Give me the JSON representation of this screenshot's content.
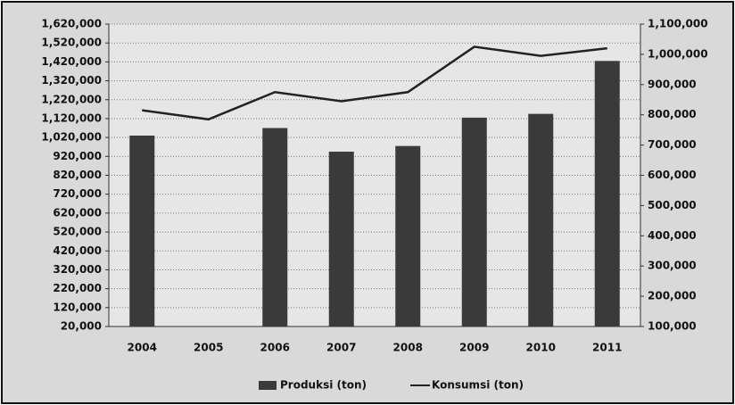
{
  "chart_data": {
    "type": "bar-line",
    "categories": [
      "2004",
      "2005",
      "2006",
      "2007",
      "2008",
      "2009",
      "2010",
      "2011"
    ],
    "series": [
      {
        "name": "Produksi (ton)",
        "type": "bar",
        "color": "#3a3a3a",
        "axis": "y",
        "values": [
          1030000,
          null,
          1070000,
          945000,
          975000,
          1125000,
          1145000,
          1425000
        ]
      },
      {
        "name": "Konsumsi (ton)",
        "type": "line",
        "color": "#222222",
        "axis": "y2",
        "values": [
          815000,
          785000,
          875000,
          845000,
          875000,
          1025000,
          995000,
          1020000
        ]
      }
    ],
    "ylim": [
      20000,
      1620000
    ],
    "yticks": [
      {
        "value": 20000,
        "label": "20,000"
      },
      {
        "value": 120000,
        "label": "120,000"
      },
      {
        "value": 220000,
        "label": "220,000"
      },
      {
        "value": 320000,
        "label": "320,000"
      },
      {
        "value": 420000,
        "label": "420,000"
      },
      {
        "value": 520000,
        "label": "520,000"
      },
      {
        "value": 620000,
        "label": "620,000"
      },
      {
        "value": 720000,
        "label": "720,000"
      },
      {
        "value": 820000,
        "label": "820,000"
      },
      {
        "value": 920000,
        "label": "920,000"
      },
      {
        "value": 1020000,
        "label": "1,020,000"
      },
      {
        "value": 1120000,
        "label": "1,120,000"
      },
      {
        "value": 1220000,
        "label": "1,220,000"
      },
      {
        "value": 1320000,
        "label": "1,320,000"
      },
      {
        "value": 1420000,
        "label": "1,420,000"
      },
      {
        "value": 1520000,
        "label": "1,520,000"
      },
      {
        "value": 1620000,
        "label": "1,620,000"
      }
    ],
    "y2lim": [
      100000,
      1100000
    ],
    "y2ticks": [
      {
        "value": 100000,
        "label": "100,000"
      },
      {
        "value": 200000,
        "label": "200,000"
      },
      {
        "value": 300000,
        "label": "300,000"
      },
      {
        "value": 400000,
        "label": "400,000"
      },
      {
        "value": 500000,
        "label": "500,000"
      },
      {
        "value": 600000,
        "label": "600,000"
      },
      {
        "value": 700000,
        "label": "700,000"
      },
      {
        "value": 800000,
        "label": "800,000"
      },
      {
        "value": 900000,
        "label": "900,000"
      },
      {
        "value": 1000000,
        "label": "1,000,000"
      },
      {
        "value": 1100000,
        "label": "1,100,000"
      }
    ],
    "grid": true,
    "legend": "bottom"
  }
}
